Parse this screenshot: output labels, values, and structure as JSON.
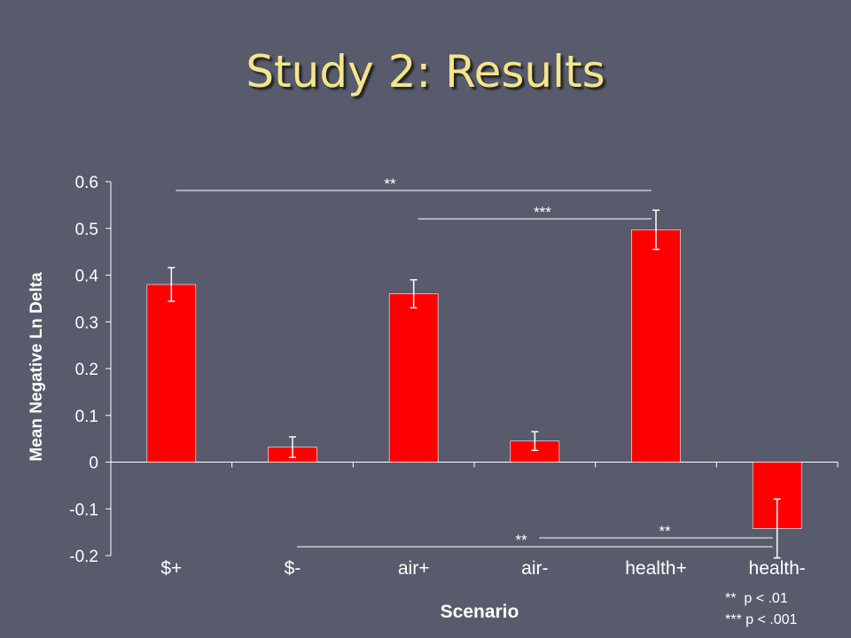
{
  "slide": {
    "title": "Study 2: Results"
  },
  "notes": [
    "**  p < .01",
    "*** p < .001"
  ],
  "colors": {
    "bar": "#ff0000",
    "text": "#ffffff",
    "title": "#f3e58a",
    "background": "#585b6c"
  },
  "chart_data": {
    "type": "bar",
    "title": "",
    "xlabel": "Scenario",
    "ylabel": "Mean Negative Ln Delta",
    "ylim": [
      -0.2,
      0.6
    ],
    "yticks": [
      "0.6",
      "0.5",
      "0.4",
      "0.3",
      "0.2",
      "0.1",
      "0",
      "-0.1",
      "-0.2"
    ],
    "ytick_values": [
      0.6,
      0.5,
      0.4,
      0.3,
      0.2,
      0.1,
      0,
      -0.1,
      -0.2
    ],
    "categories": [
      "$+",
      "$-",
      "air+",
      "air-",
      "health+",
      "health-"
    ],
    "values": [
      0.38,
      0.032,
      0.36,
      0.045,
      0.497,
      -0.142
    ],
    "errors": [
      0.036,
      0.022,
      0.03,
      0.02,
      0.042,
      0.063
    ],
    "significance": [
      {
        "label": "**",
        "from": "$+",
        "to": "health+"
      },
      {
        "label": "***",
        "from": "air+",
        "to": "health+"
      },
      {
        "label": "**",
        "from": "$-",
        "to": "health-"
      },
      {
        "label": "**",
        "from": "air-",
        "to": "health-"
      }
    ],
    "grid": false,
    "legend": "none"
  }
}
